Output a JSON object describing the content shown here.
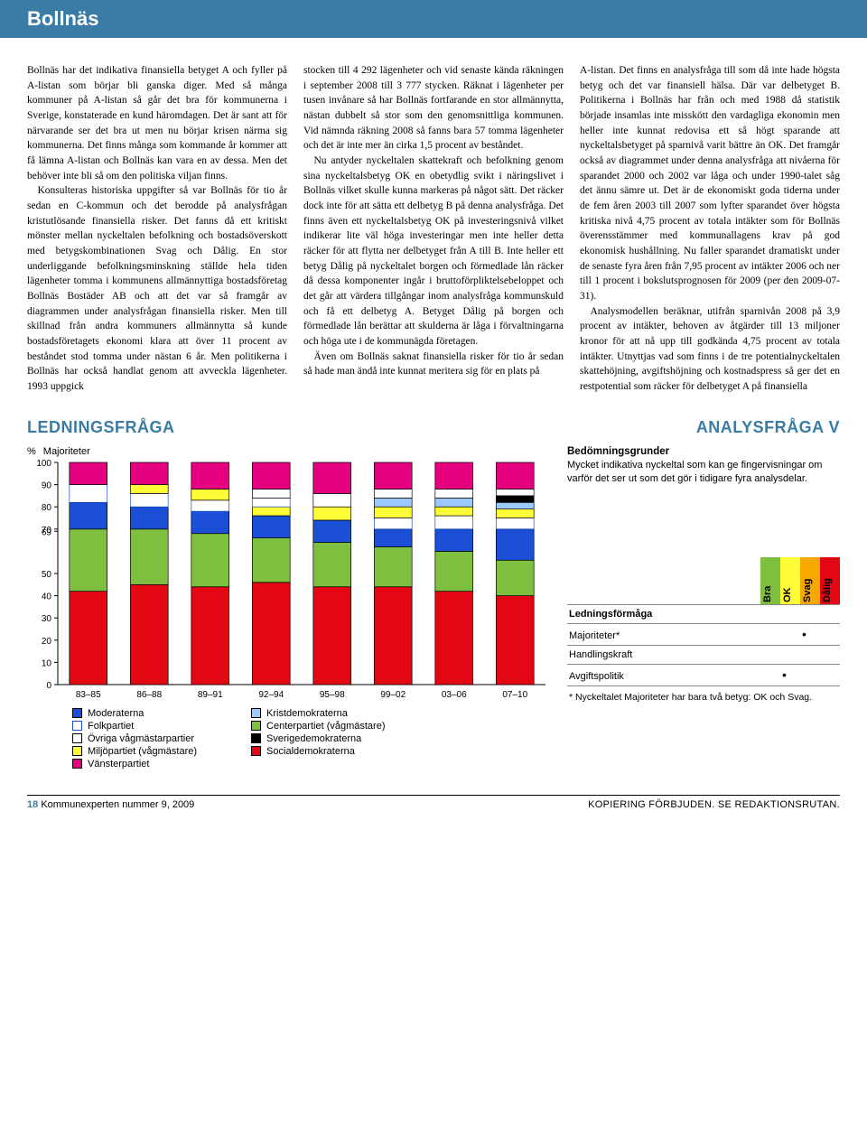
{
  "header": {
    "title": "Bollnäs"
  },
  "body": {
    "col1": {
      "p1_first": "Bollnäs har det indikativa finansiella betyget A och fyller på A-listan som börjar bli ganska diger. Med så många kommuner på A-listan så går det bra för kommunerna i Sverige, konstaterade en kund häromdagen. Det är sant att för närvarande ser det bra ut men nu börjar krisen närma sig kommunerna. Det finns många som kommande år kommer att få lämna A-listan och Bollnäs kan vara en av dessa. Men det behöver inte bli så om den politiska viljan finns.",
      "p2": "Konsulteras historiska uppgifter så var Bollnäs för tio år sedan en C-kommun och det berodde på analysfrågan kristutlösande finansiella risker. Det fanns då ett kritiskt mönster mellan nyckeltalen befolkning och bostadsöverskott med betygskombinationen Svag och Dålig. En stor underliggande befolkningsminskning ställde hela tiden lägenheter tomma i kommunens allmännyttiga bostadsföretag Bollnäs Bostäder AB och att det var så framgår av diagrammen under analysfrågan finansiella risker. Men till skillnad från andra kommuners allmännytta så kunde bostadsföretagets ekonomi klara att över 11 procent av beståndet stod tomma under nästan 6 år. Men politikerna i Bollnäs har också handlat genom att avveckla lägenheter. 1993 uppgick"
    },
    "col2": {
      "p1": "stocken till 4 292 lägenheter och vid senaste kända räkningen i september 2008 till 3 777 stycken. Räknat i lägenheter per tusen invånare så har Bollnäs fortfarande en stor allmännytta, nästan dubbelt så stor som den genomsnittliga kommunen. Vid nämnda räkning 2008 så fanns bara 57 tomma lägenheter och det är inte mer än cirka 1,5 procent av beståndet.",
      "p2": "Nu antyder nyckeltalen skattekraft och befolkning genom sina nyckeltalsbetyg OK en obetydlig svikt i näringslivet i Bollnäs vilket skulle kunna markeras på något sätt. Det räcker dock inte för att sätta ett delbetyg B på denna analysfråga. Det finns även ett nyckeltalsbetyg OK på investeringsnivå vilket indikerar lite väl höga investeringar men inte heller detta räcker för att flytta ner delbetyget från A till B. Inte heller ett betyg Dålig på nyckeltalet borgen och förmedlade lån räcker då dessa komponenter ingår i bruttoförpliktelsebeloppet och det går att värdera tillgångar inom analysfråga kommunskuld och få ett delbetyg A. Betyget Dålig på borgen och förmedlade lån berättar att skulderna är låga i förvaltningarna och höga ute i de kommunägda företagen.",
      "p3": "Även om Bollnäs saknat finansiella risker för tio år sedan så hade man ändå inte kunnat meritera sig för en plats på"
    },
    "col3": {
      "p1": "A-listan. Det finns en analysfråga till som då inte hade högsta betyg och det var finansiell hälsa. Där var delbetyget B. Politikerna i Bollnäs har från och med 1988 då statistik började insamlas inte misskött den vardagliga ekonomin men heller inte kunnat redovisa ett så högt sparande att nyckeltalsbetyget på sparnivå varit bättre än OK. Det framgår också av diagrammet under denna analysfråga att nivåerna för sparandet 2000 och 2002 var låga och under 1990-talet såg det ännu sämre ut. Det är de ekonomiskt goda tiderna under de fem åren 2003 till 2007 som lyfter sparandet över högsta kritiska nivå 4,75 procent av totala intäkter som för Bollnäs överensstämmer med kommunallagens krav på god ekonomisk hushållning. Nu faller sparandet dramatiskt under de senaste fyra åren från 7,95 procent av intäkter 2006 och ner till 1 procent i bokslutsprognosen för 2009 (per den 2009-07-31).",
      "p2": "Analysmodellen beräknar, utifrån sparnivån 2008 på 3,9 procent av intäkter, behoven av åtgärder till 13 miljoner kronor för att nå upp till godkända 4,75 procent av totala intäkter. Utnyttjas vad som finns i de tre potentialnyckeltalen skattehöjning, avgiftshöjning och kostnadspress så ger det en restpotential som räcker för delbetyget A på finansiella"
    }
  },
  "sections": {
    "left": "LEDNINGSFRÅGA",
    "right": "ANALYSFRÅGA V"
  },
  "chart": {
    "pct_label": "%",
    "series_label": "Majoriteter",
    "ylim": [
      0,
      100
    ],
    "yticks": [
      100,
      90,
      80,
      70,
      69,
      50,
      40,
      30,
      20,
      10,
      0
    ],
    "categories": [
      "83–85",
      "86–88",
      "89–91",
      "92–94",
      "95–98",
      "99–02",
      "03–06",
      "07–10"
    ],
    "parties": {
      "m": {
        "label": "Moderaterna",
        "color": "#1a4fd6",
        "hollow": false
      },
      "fp": {
        "label": "Folkpartiet",
        "color": "#ffffff",
        "hollow": true,
        "border": "#1a4fd6"
      },
      "ov": {
        "label": "Övriga vågmästarpartier",
        "color": "#ffffff",
        "hollow": true,
        "border": "#000000"
      },
      "mp": {
        "label": "Miljöpartiet (vågmästare)",
        "color": "#fffd38",
        "hollow": false
      },
      "v": {
        "label": "Vänsterpartiet",
        "color": "#e4007f",
        "hollow": false
      },
      "kd": {
        "label": "Kristdemokraterna",
        "color": "#9ec9ff",
        "hollow": false
      },
      "c": {
        "label": "Centerpartiet (vågmästare)",
        "color": "#7fbf3f",
        "hollow": false
      },
      "sd": {
        "label": "Sverigedemokraterna",
        "color": "#000000",
        "hollow": false
      },
      "s": {
        "label": "Socialdemokraterna",
        "color": "#e30613",
        "hollow": false
      }
    },
    "stacks": [
      [
        [
          "s",
          42
        ],
        [
          "c",
          28
        ],
        [
          "m",
          12
        ],
        [
          "fp",
          8
        ],
        [
          "v",
          10
        ]
      ],
      [
        [
          "s",
          45
        ],
        [
          "c",
          25
        ],
        [
          "m",
          10
        ],
        [
          "fp",
          6
        ],
        [
          "mp",
          4
        ],
        [
          "v",
          10
        ]
      ],
      [
        [
          "s",
          44
        ],
        [
          "c",
          24
        ],
        [
          "m",
          10
        ],
        [
          "fp",
          5
        ],
        [
          "mp",
          5
        ],
        [
          "v",
          12
        ]
      ],
      [
        [
          "s",
          46
        ],
        [
          "c",
          20
        ],
        [
          "m",
          10
        ],
        [
          "mp",
          4
        ],
        [
          "fp",
          4
        ],
        [
          "ov",
          4
        ],
        [
          "v",
          12
        ]
      ],
      [
        [
          "s",
          44
        ],
        [
          "c",
          20
        ],
        [
          "m",
          10
        ],
        [
          "mp",
          6
        ],
        [
          "ov",
          6
        ],
        [
          "v",
          14
        ]
      ],
      [
        [
          "s",
          44
        ],
        [
          "c",
          18
        ],
        [
          "m",
          8
        ],
        [
          "fp",
          5
        ],
        [
          "mp",
          5
        ],
        [
          "kd",
          4
        ],
        [
          "ov",
          4
        ],
        [
          "v",
          12
        ]
      ],
      [
        [
          "s",
          42
        ],
        [
          "c",
          18
        ],
        [
          "m",
          10
        ],
        [
          "fp",
          6
        ],
        [
          "mp",
          4
        ],
        [
          "kd",
          4
        ],
        [
          "ov",
          4
        ],
        [
          "v",
          12
        ]
      ],
      [
        [
          "s",
          40
        ],
        [
          "c",
          16
        ],
        [
          "m",
          14
        ],
        [
          "fp",
          5
        ],
        [
          "mp",
          4
        ],
        [
          "kd",
          3
        ],
        [
          "sd",
          3
        ],
        [
          "ov",
          3
        ],
        [
          "v",
          12
        ]
      ]
    ],
    "colors": {
      "axis": "#000000",
      "grid": "#000000",
      "background": "#ffffff"
    },
    "bar_width": 0.62
  },
  "right_panel": {
    "heading": "Bedömningsgrunder",
    "desc": "Mycket indikativa nyckeltal som kan ge fingervisningar om varför det ser ut som det gör i tidigare fyra analysdelar.",
    "ratings_header": [
      "Bra",
      "OK",
      "Svag",
      "Dålig"
    ],
    "rating_colors": {
      "Bra": "#7fbf3f",
      "OK": "#fffd38",
      "Svag": "#f6a800",
      "Dålig": "#e30613"
    },
    "rows": [
      {
        "label": "Ledningsförmåga",
        "marks": [
          null,
          null,
          null,
          null
        ]
      },
      {
        "label": "Majoriteter*",
        "marks": [
          null,
          null,
          "•",
          null
        ]
      },
      {
        "label": "Handlingskraft",
        "marks": [
          null,
          null,
          null,
          null
        ]
      },
      {
        "label": "Avgiftspolitik",
        "marks": [
          null,
          "•",
          null,
          null
        ]
      }
    ],
    "footnote": "* Nyckeltalet Majoriteter har bara två betyg: OK och Svag."
  },
  "footer": {
    "page": "18",
    "pub": "Kommunexperten nummer 9, 2009",
    "legal": "KOPIERING FÖRBJUDEN. SE REDAKTIONSRUTAN."
  }
}
